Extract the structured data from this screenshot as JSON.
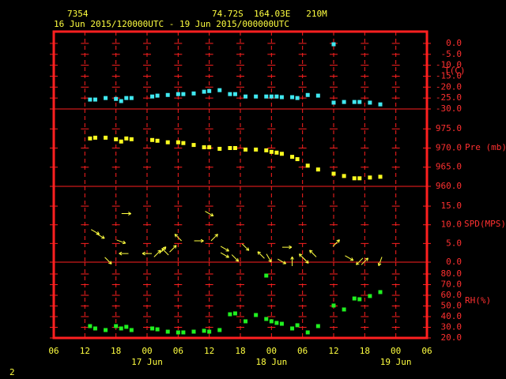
{
  "header": {
    "station": "7354",
    "location": "74.72S  164.03E   210M",
    "period": "16 Jun 2015/120000UTC - 19 Jun 2015/000000UTC"
  },
  "page_number": "2",
  "x_axis": {
    "xlim": [
      6,
      78
    ],
    "xticks": [
      {
        "value": 6,
        "label": "06"
      },
      {
        "value": 12,
        "label": "12"
      },
      {
        "value": 18,
        "label": "18"
      },
      {
        "value": 24,
        "label": "00"
      },
      {
        "value": 30,
        "label": "06"
      },
      {
        "value": 36,
        "label": "12"
      },
      {
        "value": 42,
        "label": "18"
      },
      {
        "value": 48,
        "label": "00"
      },
      {
        "value": 54,
        "label": "06"
      },
      {
        "value": 60,
        "label": "12"
      },
      {
        "value": 66,
        "label": "18"
      },
      {
        "value": 72,
        "label": "00"
      },
      {
        "value": 78,
        "label": "06"
      }
    ],
    "date_labels": [
      {
        "value": 24,
        "label": "17 Jun"
      },
      {
        "value": 48,
        "label": "18 Jun"
      },
      {
        "value": 72,
        "label": "19 Jun"
      }
    ]
  },
  "chart_data": [
    {
      "type": "scatter",
      "y_label": "T(C)",
      "color": "#40e8f0",
      "x": [
        13,
        14,
        16,
        18,
        19,
        20,
        21,
        25,
        26,
        28,
        30,
        31,
        33,
        35,
        36,
        38,
        40,
        41,
        43,
        45,
        47,
        48,
        49,
        50,
        52,
        53,
        55,
        57,
        60,
        60,
        62,
        64,
        65,
        67,
        69
      ],
      "values": [
        -25.7,
        -25.7,
        -25.0,
        -25.4,
        -26.4,
        -25.0,
        -25.0,
        -24.3,
        -23.9,
        -23.6,
        -23.2,
        -23.2,
        -22.9,
        -22.1,
        -21.8,
        -21.4,
        -23.2,
        -23.2,
        -24.3,
        -24.3,
        -24.3,
        -24.3,
        -24.3,
        -24.6,
        -24.6,
        -25.0,
        -23.6,
        -23.9,
        -0.4,
        -27.1,
        -26.8,
        -26.8,
        -26.8,
        -27.1,
        -27.9
      ],
      "ylim": [
        -30,
        5.4
      ],
      "yticks": [
        {
          "value": 0,
          "label": "0.0"
        },
        {
          "value": -5,
          "label": "-5.0"
        },
        {
          "value": -10,
          "label": "-10.0"
        },
        {
          "value": -15,
          "label": "-15.0"
        },
        {
          "value": -20,
          "label": "-20.0"
        },
        {
          "value": -25,
          "label": "-25.0"
        },
        {
          "value": -30,
          "label": "-30.0"
        }
      ]
    },
    {
      "type": "scatter",
      "y_label": "Pre (mb)",
      "color": "#ffff20",
      "x": [
        13,
        14,
        16,
        18,
        19,
        20,
        21,
        25,
        26,
        28,
        30,
        31,
        33,
        35,
        36,
        38,
        40,
        41,
        43,
        45,
        47,
        48,
        49,
        50,
        52,
        53,
        55,
        57,
        60,
        62,
        64,
        65,
        67,
        69
      ],
      "values": [
        972.5,
        972.7,
        972.7,
        972.3,
        971.7,
        972.5,
        972.3,
        972.1,
        971.9,
        971.5,
        971.5,
        971.3,
        970.8,
        970.2,
        970.2,
        969.8,
        970.0,
        970.0,
        969.6,
        969.6,
        969.4,
        969.0,
        968.8,
        968.5,
        967.7,
        967.1,
        965.4,
        964.4,
        963.3,
        962.7,
        962.1,
        962.1,
        962.3,
        962.5
      ],
      "ylim": [
        960,
        980.2
      ],
      "yticks": [
        {
          "value": 975,
          "label": "975.0"
        },
        {
          "value": 970,
          "label": "970.0"
        },
        {
          "value": 965,
          "label": "965.0"
        },
        {
          "value": 960,
          "label": "960.0"
        }
      ]
    },
    {
      "type": "vector",
      "y_label": "SPD(MPS)",
      "color": "#ffff40",
      "x": [
        14,
        15,
        16.5,
        19,
        19.5,
        20,
        24,
        26,
        27,
        27.5,
        29,
        30,
        34,
        36,
        37,
        39,
        39,
        41,
        43,
        46,
        47.5,
        50,
        51,
        52,
        54,
        54.5,
        56,
        60.5,
        63,
        65,
        66,
        69
      ],
      "values": [
        8.1,
        7.0,
        0.4,
        5.5,
        2.3,
        13.0,
        2.3,
        2.3,
        3.2,
        2.8,
        3.6,
        6.6,
        5.7,
        13.0,
        6.6,
        3.6,
        1.9,
        1.1,
        4.0,
        1.9,
        1.1,
        0.2,
        4.0,
        0.2,
        1.3,
        0.6,
        2.3,
        5.1,
        1.1,
        0.2,
        0.2,
        0.2
      ],
      "directions": [
        120,
        120,
        135,
        110,
        270,
        90,
        270,
        45,
        45,
        315,
        45,
        315,
        90,
        120,
        45,
        120,
        120,
        135,
        135,
        315,
        150,
        120,
        90,
        0,
        315,
        135,
        315,
        45,
        120,
        225,
        45,
        200
      ],
      "ylim": [
        0,
        20.3
      ],
      "yticks": [
        {
          "value": 15,
          "label": "15.0"
        },
        {
          "value": 10,
          "label": "10.0"
        },
        {
          "value": 5,
          "label": "5.0"
        },
        {
          "value": 0,
          "label": "0.0"
        }
      ]
    },
    {
      "type": "scatter",
      "y_label": "RH(%)",
      "color": "#20f020",
      "x": [
        13,
        14,
        16,
        18,
        19,
        20,
        21,
        25,
        26,
        28,
        30,
        31,
        33,
        35,
        36,
        38,
        40,
        41,
        43,
        45,
        47,
        47,
        48,
        49,
        50,
        52,
        53,
        55,
        57,
        60,
        62,
        64,
        65,
        67,
        69
      ],
      "values": [
        31.1,
        28.9,
        27.4,
        31.1,
        28.9,
        30.4,
        27.4,
        28.9,
        28.1,
        25.9,
        25.2,
        25.2,
        25.9,
        26.7,
        25.9,
        27.4,
        42.2,
        43.0,
        35.6,
        41.5,
        78.5,
        37.8,
        35.6,
        34.1,
        33.3,
        28.9,
        31.9,
        25.2,
        31.1,
        50.4,
        46.7,
        57.0,
        56.3,
        59.3,
        63.0
      ],
      "ylim": [
        20,
        91.1
      ],
      "yticks": [
        {
          "value": 80,
          "label": "80.0"
        },
        {
          "value": 70,
          "label": "70.0"
        },
        {
          "value": 60,
          "label": "60.0"
        },
        {
          "value": 50,
          "label": "50.0"
        },
        {
          "value": 40,
          "label": "40.0"
        },
        {
          "value": 30,
          "label": "30.0"
        },
        {
          "value": 20,
          "label": "20.0"
        }
      ]
    }
  ]
}
